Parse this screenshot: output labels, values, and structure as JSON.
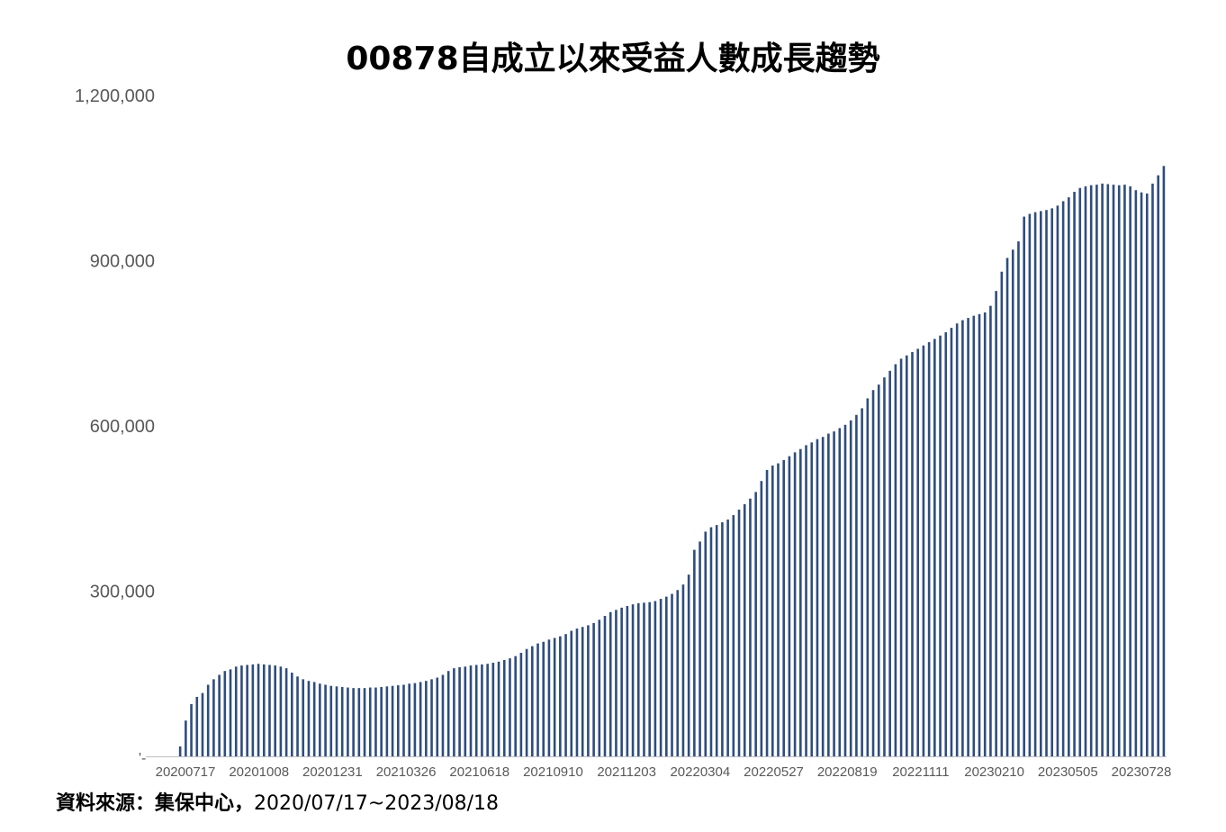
{
  "chart_data": {
    "type": "bar",
    "title": "00878自成立以來受益人數成長趨勢",
    "xlabel": "",
    "ylabel": "",
    "ylim": [
      0,
      1200000
    ],
    "yticks": [
      0,
      300000,
      600000,
      900000,
      1200000
    ],
    "ytick_labels": [
      "'-",
      "300,000",
      "600,000",
      "900,000",
      "1,200,000"
    ],
    "xtick_labels": [
      "20200717",
      "20201008",
      "20201231",
      "20210326",
      "20210618",
      "20210910",
      "20211203",
      "20220304",
      "20220527",
      "20220819",
      "20221111",
      "20230210",
      "20230505",
      "20230728"
    ],
    "x_start": "2020-07-17",
    "x_end": "2023-08-18",
    "frequency": "weekly",
    "bar_color": "#2f4d7e",
    "grid": false,
    "legend": "none",
    "values": [
      0,
      0,
      0,
      0,
      0,
      18000,
      65000,
      95000,
      108000,
      115000,
      130000,
      140000,
      148000,
      155000,
      158000,
      163000,
      165000,
      166000,
      167000,
      168000,
      167000,
      166000,
      165000,
      163000,
      160000,
      152000,
      145000,
      140000,
      137000,
      135000,
      132000,
      130000,
      128000,
      127000,
      126000,
      125000,
      124000,
      124000,
      124000,
      125000,
      125000,
      126000,
      127000,
      128000,
      129000,
      130000,
      132000,
      133000,
      135000,
      137000,
      140000,
      143000,
      148000,
      155000,
      160000,
      162000,
      163000,
      165000,
      166000,
      167000,
      168000,
      170000,
      172000,
      175000,
      178000,
      182000,
      188000,
      195000,
      200000,
      205000,
      208000,
      212000,
      215000,
      218000,
      222000,
      228000,
      232000,
      235000,
      238000,
      242000,
      248000,
      255000,
      262000,
      266000,
      270000,
      273000,
      276000,
      278000,
      279000,
      280000,
      282000,
      286000,
      290000,
      295000,
      302000,
      312000,
      330000,
      375000,
      390000,
      408000,
      416000,
      420000,
      425000,
      430000,
      438000,
      448000,
      458000,
      468000,
      480000,
      500000,
      520000,
      528000,
      532000,
      538000,
      545000,
      552000,
      558000,
      565000,
      570000,
      576000,
      580000,
      586000,
      590000,
      596000,
      602000,
      610000,
      620000,
      632000,
      650000,
      665000,
      675000,
      688000,
      700000,
      712000,
      722000,
      728000,
      734000,
      740000,
      746000,
      752000,
      758000,
      764000,
      770000,
      778000,
      786000,
      792000,
      796000,
      800000,
      803000,
      806000,
      818000,
      845000,
      880000,
      905000,
      920000,
      935000,
      980000,
      985000,
      988000,
      990000,
      992000,
      995000,
      1000000,
      1008000,
      1015000,
      1025000,
      1032000,
      1035000,
      1037000,
      1038000,
      1040000,
      1039000,
      1038000,
      1037000,
      1038000,
      1035000,
      1028000,
      1024000,
      1022000,
      1040000,
      1055000,
      1072000
    ]
  },
  "source": {
    "label": "資料來源：集保中心，",
    "range": "2020/07/17~2023/08/18"
  }
}
